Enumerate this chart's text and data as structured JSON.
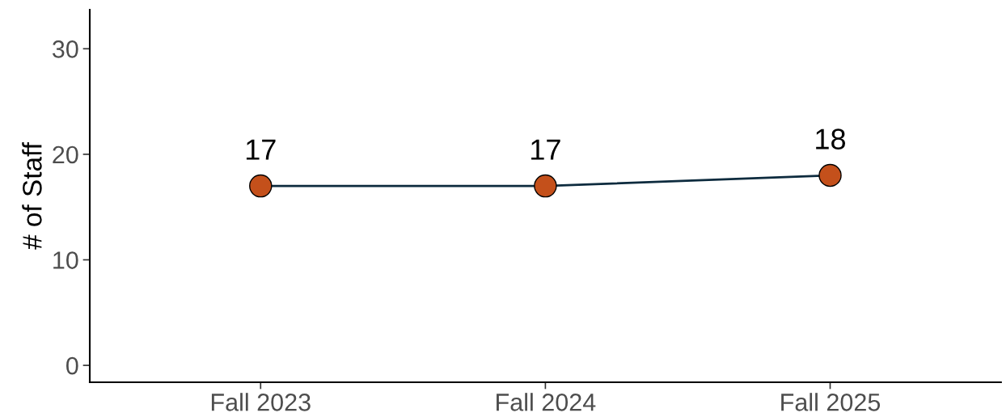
{
  "chart_data": {
    "type": "line",
    "ylabel": "# of Staff",
    "categories": [
      "Fall 2023",
      "Fall 2024",
      "Fall 2025"
    ],
    "series": [
      {
        "color": "#0d2b3e",
        "colors": [
          "#c4501b",
          "#c4501b",
          "#c4501b"
        ],
        "values": [
          17,
          17,
          18
        ]
      }
    ],
    "marker": "circle",
    "data_labels": true,
    "grid": false,
    "ylim": [
      -1.6,
      33.7
    ],
    "yticks": [
      0,
      10,
      20,
      30
    ]
  }
}
